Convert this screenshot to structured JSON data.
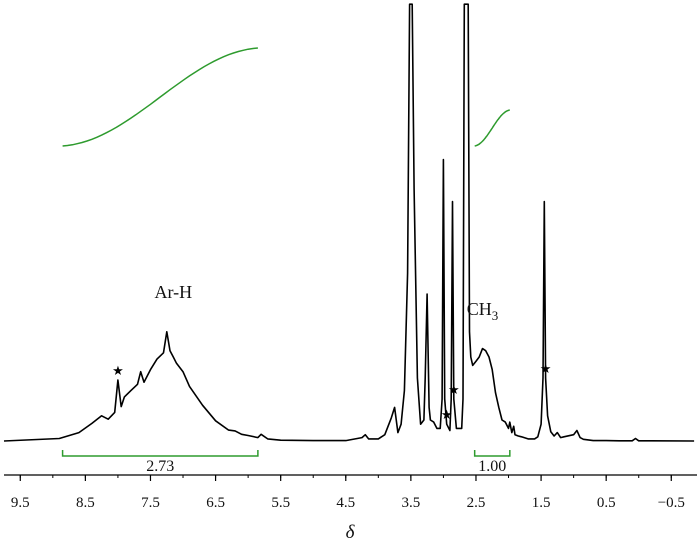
{
  "chart_data": {
    "type": "line",
    "xlabel": "δ",
    "xlim": [
      9.75,
      -0.85
    ],
    "x_reversed": true,
    "xticks": [
      "9.5",
      "8.5",
      "7.5",
      "6.5",
      "5.5",
      "4.5",
      "3.5",
      "2.5",
      "1.5",
      "0.5",
      "−0.5"
    ],
    "xtick_values": [
      9.5,
      8.5,
      7.5,
      6.5,
      5.5,
      4.5,
      3.5,
      2.5,
      1.5,
      0.5,
      -0.5
    ],
    "grid": false,
    "series": [
      {
        "color": "#000000",
        "x": [
          9.75,
          8.9,
          8.6,
          8.4,
          8.25,
          8.15,
          8.05,
          8.0,
          7.95,
          7.9,
          7.8,
          7.7,
          7.65,
          7.6,
          7.5,
          7.4,
          7.3,
          7.25,
          7.2,
          7.15,
          7.1,
          7.0,
          6.9,
          6.7,
          6.5,
          6.3,
          6.2,
          6.1,
          6.0,
          5.85,
          5.8,
          5.7,
          5.5,
          5.0,
          4.5,
          4.25,
          4.2,
          4.15,
          4.0,
          3.9,
          3.8,
          3.75,
          3.7,
          3.65,
          3.6,
          3.55,
          3.52,
          3.5,
          3.48,
          3.45,
          3.4,
          3.35,
          3.3,
          3.28,
          3.25,
          3.22,
          3.2,
          3.15,
          3.1,
          3.05,
          3.02,
          3.0,
          2.98,
          2.95,
          2.9,
          2.88,
          2.86,
          2.84,
          2.8,
          2.72,
          2.7,
          2.68,
          2.65,
          2.62,
          2.6,
          2.58,
          2.55,
          2.5,
          2.45,
          2.4,
          2.35,
          2.3,
          2.25,
          2.2,
          2.15,
          2.1,
          2.05,
          2.0,
          1.98,
          1.95,
          1.92,
          1.9,
          1.85,
          1.8,
          1.7,
          1.6,
          1.55,
          1.5,
          1.47,
          1.45,
          1.43,
          1.4,
          1.35,
          1.3,
          1.25,
          1.2,
          1.15,
          1.0,
          0.95,
          0.9,
          0.85,
          0.7,
          0.5,
          0.3,
          0.1,
          0.05,
          0.0,
          -0.2,
          -0.85
        ],
        "y": [
          0.0,
          0.6,
          2.0,
          4.2,
          6.0,
          5.2,
          6.8,
          14.5,
          8.2,
          10.5,
          12.0,
          13.5,
          16.5,
          14.0,
          17.0,
          19.5,
          21.0,
          26.0,
          21.5,
          20.0,
          18.5,
          16.5,
          13.0,
          8.5,
          4.8,
          2.6,
          2.4,
          1.6,
          1.3,
          0.8,
          1.6,
          0.5,
          0.2,
          0.1,
          0.1,
          0.8,
          1.5,
          0.5,
          0.5,
          1.5,
          5.5,
          8.0,
          2.0,
          4.0,
          12.0,
          40.0,
          104.0,
          104.0,
          104.0,
          60.0,
          15.0,
          4.0,
          5.0,
          15.0,
          35.0,
          8.0,
          5.0,
          4.5,
          3.0,
          3.0,
          10.0,
          67.0,
          10.0,
          4.0,
          2.5,
          10.0,
          57.0,
          10.0,
          3.0,
          3.0,
          10.0,
          104.0,
          104.0,
          104.0,
          26.0,
          20.0,
          18.0,
          19.0,
          20.0,
          22.0,
          21.5,
          20.0,
          17.0,
          11.5,
          8.0,
          5.0,
          4.5,
          3.0,
          4.5,
          2.0,
          3.5,
          1.5,
          1.2,
          1.0,
          0.5,
          0.5,
          1.0,
          4.0,
          15.0,
          57.0,
          15.0,
          6.0,
          2.2,
          1.2,
          2.0,
          0.8,
          1.0,
          1.5,
          2.5,
          0.8,
          0.4,
          0.1,
          0.1,
          0.05,
          0.05,
          0.6,
          0.05,
          0.05,
          0.0
        ]
      }
    ],
    "annotations": [
      {
        "text": "Ar-H",
        "x": 7.15,
        "y": 34.0
      },
      {
        "text": "CH",
        "subscript": "3",
        "x": 2.4,
        "y": 30.0
      }
    ],
    "impurity_markers": {
      "symbol": "★",
      "x": [
        8.0,
        2.95,
        2.84,
        1.43
      ]
    },
    "integrals": [
      {
        "label": "2.73",
        "from": 8.85,
        "to": 5.85
      },
      {
        "label": "1.00",
        "from": 2.52,
        "to": 1.98
      }
    ]
  }
}
